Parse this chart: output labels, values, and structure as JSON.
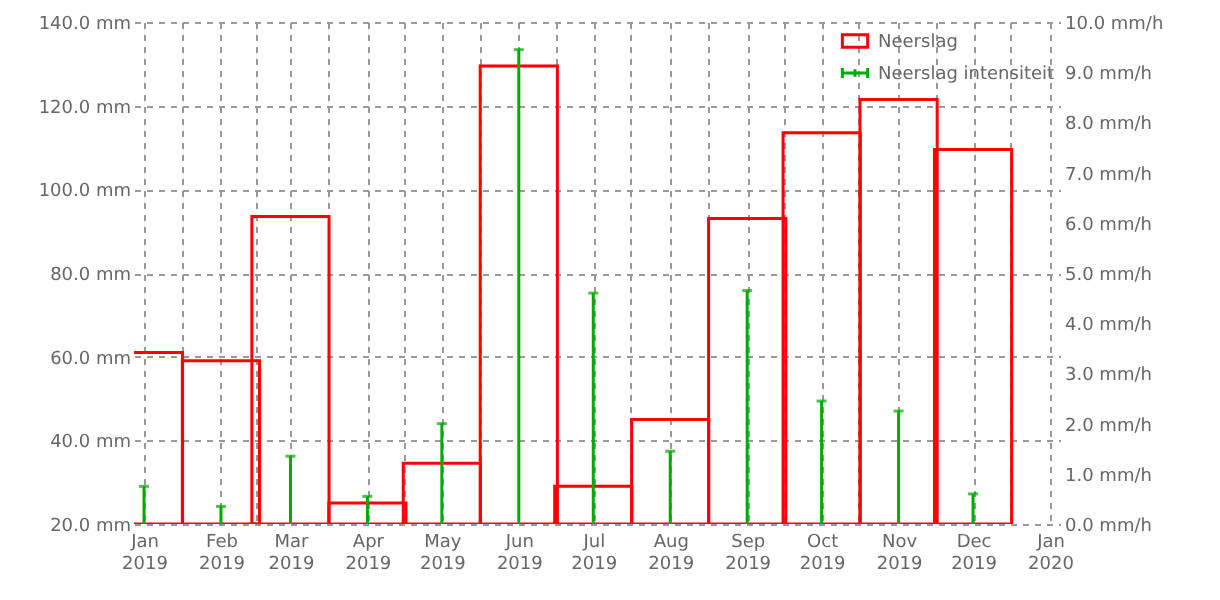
{
  "chart_data": {
    "type": "bar",
    "legend": "top right",
    "grid": true,
    "x": [
      "2019-01",
      "2019-02",
      "2019-03",
      "2019-04",
      "2019-05",
      "2019-06",
      "2019-07",
      "2019-08",
      "2019-09",
      "2019-10",
      "2019-11",
      "2019-12"
    ],
    "xlim": [
      "2019-01",
      "2020-01"
    ],
    "xticks": [
      {
        "value": "2019-01",
        "label": "Jan 2019"
      },
      {
        "value": "2019-01-16",
        "label": null
      },
      {
        "value": "2019-02",
        "label": "Feb 2019"
      },
      {
        "value": "2019-02-15",
        "label": null
      },
      {
        "value": "2019-03",
        "label": "Mar 2019"
      },
      {
        "value": "2019-03-16",
        "label": null
      },
      {
        "value": "2019-04",
        "label": "Apr 2019"
      },
      {
        "value": "2019-04-16",
        "label": null
      },
      {
        "value": "2019-05",
        "label": "May 2019"
      },
      {
        "value": "2019-05-16",
        "label": null
      },
      {
        "value": "2019-06",
        "label": "Jun 2019"
      },
      {
        "value": "2019-06-16",
        "label": null
      },
      {
        "value": "2019-07",
        "label": "Jul 2019"
      },
      {
        "value": "2019-07-16",
        "label": null
      },
      {
        "value": "2019-08",
        "label": "Aug 2019"
      },
      {
        "value": "2019-08-16",
        "label": null
      },
      {
        "value": "2019-09",
        "label": "Sep 2019"
      },
      {
        "value": "2019-09-16",
        "label": null
      },
      {
        "value": "2019-10",
        "label": "Oct 2019"
      },
      {
        "value": "2019-10-16",
        "label": null
      },
      {
        "value": "2019-11",
        "label": "Nov 2019"
      },
      {
        "value": "2019-11-16",
        "label": null
      },
      {
        "value": "2019-12",
        "label": "Dec 2019"
      },
      {
        "value": "2019-12-16",
        "label": null
      },
      {
        "value": "2020-01",
        "label": "Jan 2020"
      }
    ],
    "ylim": [
      20,
      140
    ],
    "yticks": [
      {
        "value": 20,
        "label": "20.0 mm"
      },
      {
        "value": 40,
        "label": "40.0 mm"
      },
      {
        "value": 60,
        "label": "60.0 mm"
      },
      {
        "value": 80,
        "label": "80.0 mm"
      },
      {
        "value": 100,
        "label": "100.0 mm"
      },
      {
        "value": 120,
        "label": "120.0 mm"
      },
      {
        "value": 140,
        "label": "140.0 mm"
      }
    ],
    "y2lim": [
      0,
      10
    ],
    "y2ticks": [
      {
        "value": 0,
        "label": "0.0 mm/h"
      },
      {
        "value": 1,
        "label": "1.0 mm/h"
      },
      {
        "value": 2,
        "label": "2.0 mm/h"
      },
      {
        "value": 3,
        "label": "3.0 mm/h"
      },
      {
        "value": 4,
        "label": "4.0 mm/h"
      },
      {
        "value": 5,
        "label": "5.0 mm/h"
      },
      {
        "value": 6,
        "label": "6.0 mm/h"
      },
      {
        "value": 7,
        "label": "7.0 mm/h"
      },
      {
        "value": 8,
        "label": "8.0 mm/h"
      },
      {
        "value": 9,
        "label": "9.0 mm/h"
      },
      {
        "value": 10,
        "label": "10.0 mm/h"
      }
    ],
    "series": [
      {
        "name": "Neerslag",
        "color": "#ff0000",
        "values": [
          61,
          59,
          93.5,
          25,
          34.5,
          129.5,
          29,
          45,
          93,
          113.5,
          121.5,
          109.5
        ]
      },
      {
        "name": "Neerslag intensiteit",
        "type": "lollipop",
        "axis": "y2",
        "color": "#00aa00",
        "values": [
          0.75,
          0.35,
          1.35,
          0.55,
          2.0,
          9.45,
          4.6,
          1.45,
          4.65,
          2.45,
          2.25,
          0.6
        ]
      }
    ]
  }
}
